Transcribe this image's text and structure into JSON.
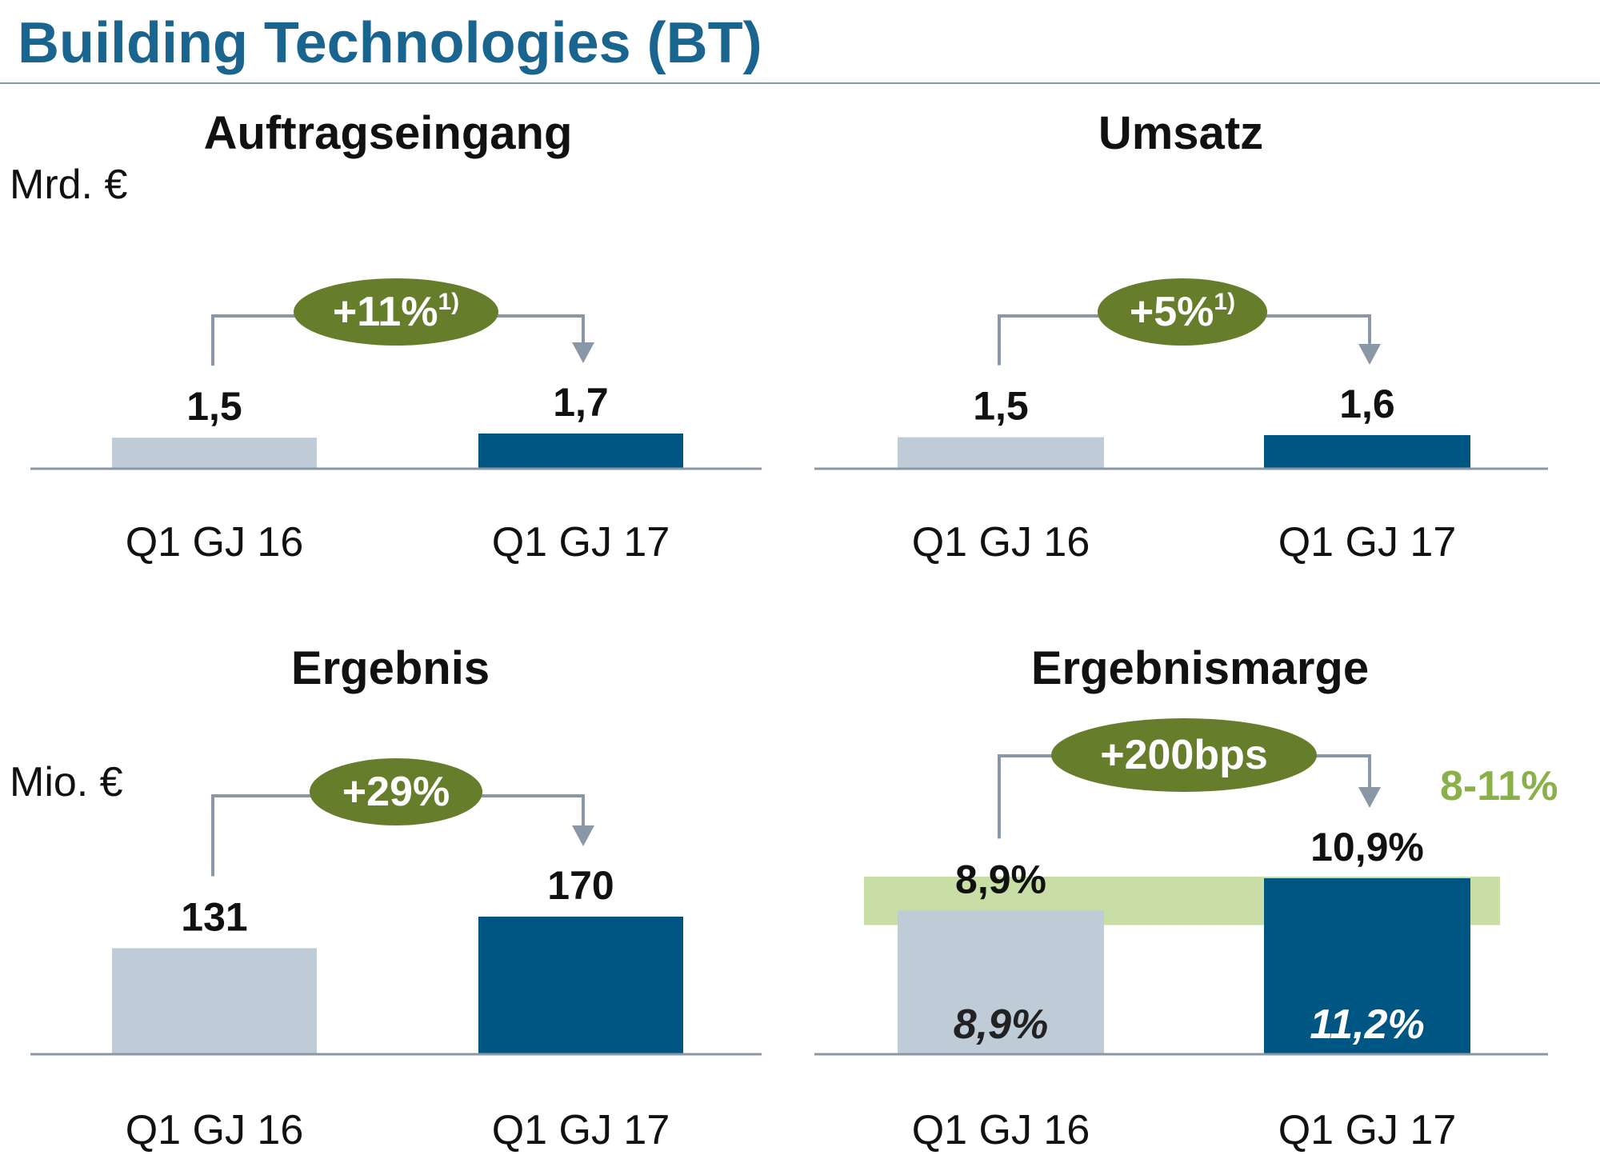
{
  "page_title": "Building Technologies (BT)",
  "colors": {
    "title": "#1a6590",
    "prior_bar": "#bfccd8",
    "current_bar": "#005682",
    "badge": "#667e2c",
    "connector": "#8a97a6",
    "axis": "#8a97a6",
    "target_band": "#c8dea5",
    "target_text": "#8ab04a"
  },
  "chart_data": [
    {
      "type": "bar",
      "title": "Auftragseingang",
      "unit": "Mrd. €",
      "categories": [
        "Q1 GJ 16",
        "Q1 GJ 17"
      ],
      "values": [
        1.5,
        1.7
      ],
      "value_labels": [
        "1,5",
        "1,7"
      ],
      "ylim": [
        0,
        1.7
      ],
      "change_badge": "+11%",
      "change_footnote": "1)"
    },
    {
      "type": "bar",
      "title": "Umsatz",
      "categories": [
        "Q1 GJ 16",
        "Q1 GJ 17"
      ],
      "values": [
        1.5,
        1.6
      ],
      "value_labels": [
        "1,5",
        "1,6"
      ],
      "ylim": [
        0,
        1.6
      ],
      "change_badge": "+5%",
      "change_footnote": "1)"
    },
    {
      "type": "bar",
      "title": "Ergebnis",
      "unit": "Mio. €",
      "categories": [
        "Q1 GJ 16",
        "Q1 GJ 17"
      ],
      "values": [
        131,
        170
      ],
      "value_labels": [
        "131",
        "170"
      ],
      "ylim": [
        0,
        170
      ],
      "change_badge": "+29%"
    },
    {
      "type": "bar",
      "title": "Ergebnismarge",
      "categories": [
        "Q1 GJ 16",
        "Q1 GJ 17"
      ],
      "values": [
        8.9,
        10.9
      ],
      "value_labels": [
        "8,9%",
        "10,9%"
      ],
      "inner_labels": [
        "8,9%",
        "11,2%"
      ],
      "ylim": [
        0,
        10.9
      ],
      "change_badge": "+200bps",
      "target_range": [
        8,
        11
      ],
      "target_label": "8-11%"
    }
  ]
}
